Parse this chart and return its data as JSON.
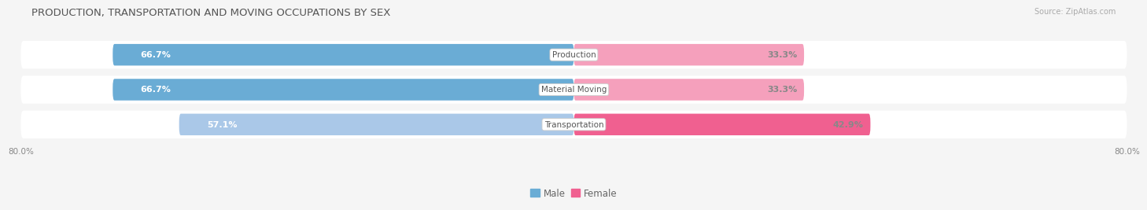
{
  "title": "PRODUCTION, TRANSPORTATION AND MOVING OCCUPATIONS BY SEX",
  "source": "Source: ZipAtlas.com",
  "categories": [
    "Production",
    "Material Moving",
    "Transportation"
  ],
  "male_pcts": [
    66.7,
    66.7,
    57.1
  ],
  "female_pcts": [
    33.3,
    33.3,
    42.9
  ],
  "male_colors": [
    "#6aacd5",
    "#6aacd5",
    "#aac8e8"
  ],
  "female_colors": [
    "#f5a0bc",
    "#f5a0bc",
    "#f06090"
  ],
  "row_bg_color": "#ebebeb",
  "bar_bg_color": "#f8f8f8",
  "fig_bg_color": "#f5f5f5",
  "axis_label_left": "80.0%",
  "axis_label_right": "80.0%",
  "title_fontsize": 9.5,
  "bar_label_fontsize": 8,
  "category_fontsize": 7.5,
  "legend_fontsize": 8.5,
  "source_fontsize": 7
}
